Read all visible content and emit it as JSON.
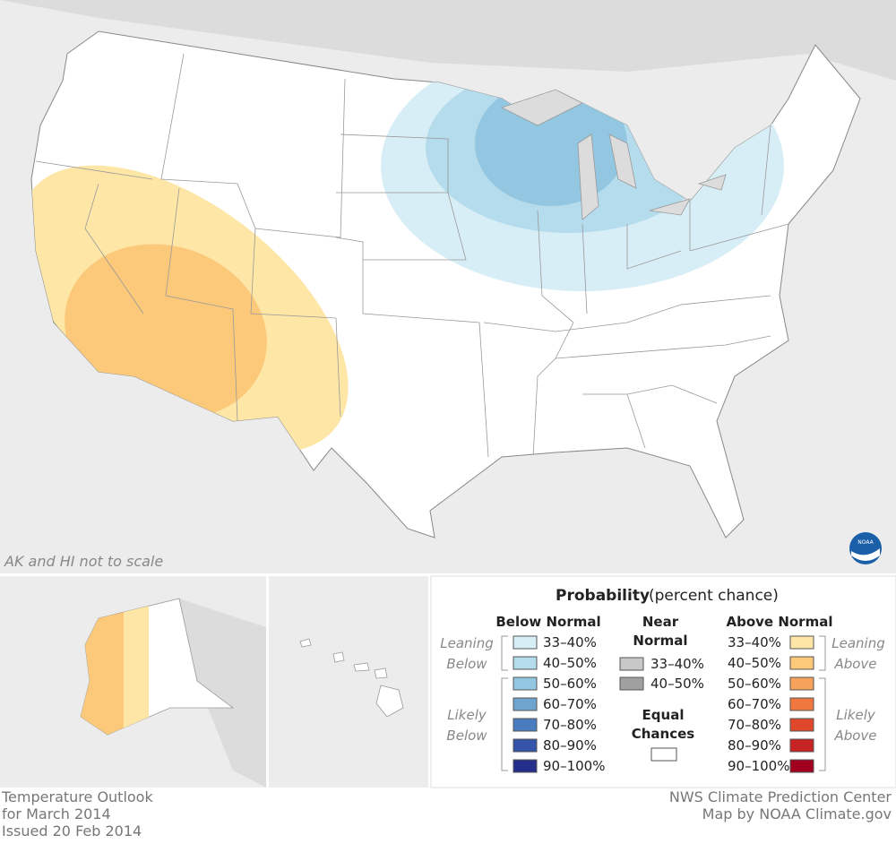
{
  "map": {
    "note": "AK and HI not to scale",
    "logo": "NOAA"
  },
  "legend": {
    "title": "Probability",
    "subtitle": "(percent chance)",
    "below": {
      "heading": "Below Normal",
      "leaning": [
        "Leaning",
        "Below"
      ],
      "likely": [
        "Likely",
        "Below"
      ],
      "items": [
        {
          "label": "33–40%",
          "color": "#d8eef6"
        },
        {
          "label": "40–50%",
          "color": "#b4dcec"
        },
        {
          "label": "50–60%",
          "color": "#93c6e0"
        },
        {
          "label": "60–70%",
          "color": "#6fa4cf"
        },
        {
          "label": "70–80%",
          "color": "#4a7cc0"
        },
        {
          "label": "80–90%",
          "color": "#3553a8"
        },
        {
          "label": "90–100%",
          "color": "#262e8c"
        }
      ]
    },
    "near": {
      "heading": [
        "Near",
        "Normal"
      ],
      "items": [
        {
          "label": "33–40%",
          "color": "#c8c8c8"
        },
        {
          "label": "40–50%",
          "color": "#a0a0a0"
        }
      ]
    },
    "equal": {
      "heading": [
        "Equal",
        "Chances"
      ],
      "color": "#ffffff"
    },
    "above": {
      "heading": "Above Normal",
      "leaning": [
        "Leaning",
        "Above"
      ],
      "likely": [
        "Likely",
        "Above"
      ],
      "items": [
        {
          "label": "33–40%",
          "color": "#fde6a6"
        },
        {
          "label": "40–50%",
          "color": "#fcc97a"
        },
        {
          "label": "50–60%",
          "color": "#f6a25a"
        },
        {
          "label": "60–70%",
          "color": "#f0783f"
        },
        {
          "label": "70–80%",
          "color": "#e0482c"
        },
        {
          "label": "80–90%",
          "color": "#c72325"
        },
        {
          "label": "90–100%",
          "color": "#a0001e"
        }
      ]
    }
  },
  "footer": {
    "left": [
      "Temperature Outlook",
      "for March 2014",
      "Issued 20 Feb 2014"
    ],
    "right": [
      "NWS Climate Prediction Center",
      "Map by NOAA Climate.gov"
    ]
  }
}
